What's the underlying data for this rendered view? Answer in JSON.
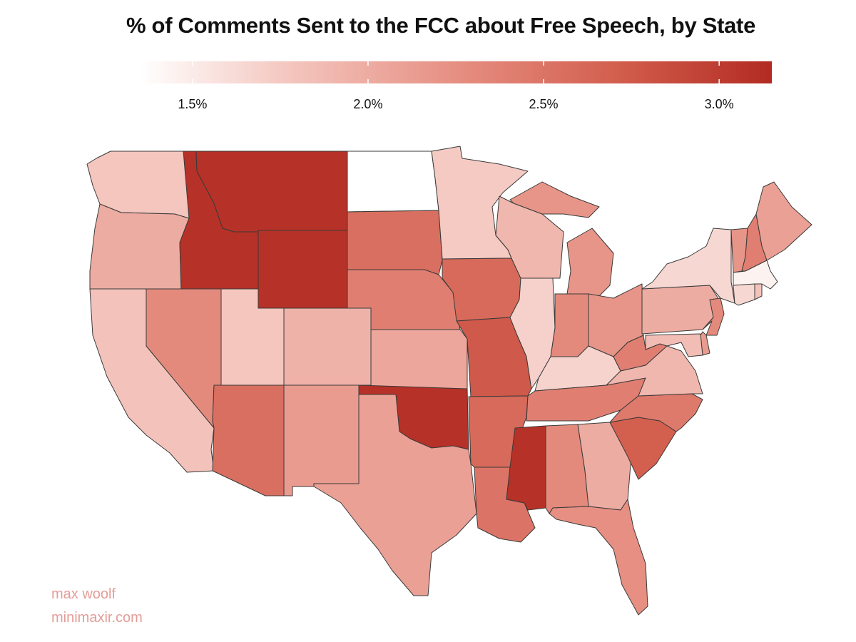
{
  "title": "% of Comments Sent to the FCC about Free Speech, by State",
  "legend": {
    "min": 1.35,
    "max": 3.15,
    "colors": [
      "#ffffff",
      "#f3c3bb",
      "#e68f82",
      "#d35f4f",
      "#b22b22"
    ],
    "ticks": [
      {
        "value": 1.5,
        "label": "1.5%"
      },
      {
        "value": 2.0,
        "label": "2.0%"
      },
      {
        "value": 2.5,
        "label": "2.5%"
      },
      {
        "value": 3.0,
        "label": "3.0%"
      }
    ]
  },
  "chart_data": {
    "type": "choropleth",
    "title": "% of Comments Sent to the FCC about Free Speech, by State",
    "unit": "%",
    "scale": [
      1.35,
      3.15
    ],
    "states": [
      {
        "code": "WA",
        "value": 1.78
      },
      {
        "code": "OR",
        "value": 2.0
      },
      {
        "code": "CA",
        "value": 1.8
      },
      {
        "code": "ID",
        "value": 3.1
      },
      {
        "code": "NV",
        "value": 2.3
      },
      {
        "code": "UT",
        "value": 1.78
      },
      {
        "code": "AZ",
        "value": 2.55
      },
      {
        "code": "MT",
        "value": 3.1
      },
      {
        "code": "WY",
        "value": 3.1
      },
      {
        "code": "CO",
        "value": 1.95
      },
      {
        "code": "NM",
        "value": 2.15
      },
      {
        "code": "ND",
        "value": 1.35
      },
      {
        "code": "SD",
        "value": 2.55
      },
      {
        "code": "NE",
        "value": 2.4
      },
      {
        "code": "KS",
        "value": 2.05
      },
      {
        "code": "OK",
        "value": 3.1
      },
      {
        "code": "TX",
        "value": 2.1
      },
      {
        "code": "MN",
        "value": 1.75
      },
      {
        "code": "IA",
        "value": 2.6
      },
      {
        "code": "MO",
        "value": 2.75
      },
      {
        "code": "AR",
        "value": 2.6
      },
      {
        "code": "LA",
        "value": 2.5
      },
      {
        "code": "WI",
        "value": 1.9
      },
      {
        "code": "IL",
        "value": 1.7
      },
      {
        "code": "MI",
        "value": 2.2
      },
      {
        "code": "IN",
        "value": 2.3
      },
      {
        "code": "OH",
        "value": 2.2
      },
      {
        "code": "KY",
        "value": 1.68
      },
      {
        "code": "TN",
        "value": 2.4
      },
      {
        "code": "MS",
        "value": 3.1
      },
      {
        "code": "AL",
        "value": 2.3
      },
      {
        "code": "GA",
        "value": 2.0
      },
      {
        "code": "FL",
        "value": 2.25
      },
      {
        "code": "SC",
        "value": 2.7
      },
      {
        "code": "NC",
        "value": 2.45
      },
      {
        "code": "VA",
        "value": 1.9
      },
      {
        "code": "WV",
        "value": 2.4
      },
      {
        "code": "PA",
        "value": 2.0
      },
      {
        "code": "NY",
        "value": 1.65
      },
      {
        "code": "VT",
        "value": 2.2
      },
      {
        "code": "NH",
        "value": 2.4
      },
      {
        "code": "ME",
        "value": 2.1
      },
      {
        "code": "MA",
        "value": 1.45
      },
      {
        "code": "CT",
        "value": 1.65
      },
      {
        "code": "RI",
        "value": 1.8
      },
      {
        "code": "NJ",
        "value": 2.3
      },
      {
        "code": "DE",
        "value": 2.15
      },
      {
        "code": "MD",
        "value": 1.85
      }
    ]
  },
  "credits": {
    "name": "max woolf",
    "site": "minimaxir.com"
  }
}
